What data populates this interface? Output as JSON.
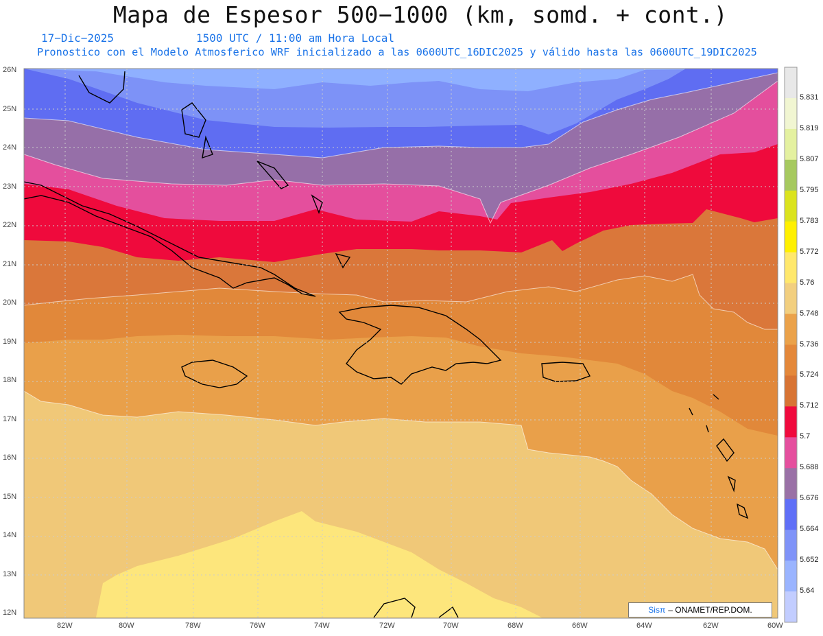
{
  "header": {
    "title": "Mapa de Espesor 500−1000 (km, somd. + cont.)",
    "date": "17−Dic−2025",
    "time": "1500 UTC / 11:00 am Hora Local",
    "forecast": "Pronostico con el Modelo Atmosferico WRF inicializado a las 0600UTC_16DIC2025 y válido hasta las  0600UTC_19DIC2025"
  },
  "map": {
    "lat_labels": [
      "26N",
      "25N",
      "24N",
      "23N",
      "22N",
      "21N",
      "20N",
      "19N",
      "18N",
      "17N",
      "16N",
      "15N",
      "14N",
      "13N",
      "12N"
    ],
    "lon_labels": [
      "82W",
      "80W",
      "78W",
      "76W",
      "74W",
      "72W",
      "70W",
      "68W",
      "66W",
      "64W",
      "62W",
      "60W"
    ],
    "bands": [
      {
        "level": "5.652",
        "color": "#8fb0ff"
      },
      {
        "level": "5.664",
        "color": "#7d92f7"
      },
      {
        "level": "5.676",
        "color": "#5f6df2"
      },
      {
        "level": "5.688",
        "color": "#966fa8"
      },
      {
        "level": "5.7",
        "color": "#e44f9d"
      },
      {
        "level": "5.712",
        "color": "#ef0a3c"
      },
      {
        "level": "5.724",
        "color": "#da773a"
      },
      {
        "level": "5.736",
        "color": "#e1883a"
      },
      {
        "level": "5.748",
        "color": "#e9a04a"
      },
      {
        "level": "5.76",
        "color": "#f0c878"
      },
      {
        "level": "5.772",
        "color": "#fde67c"
      }
    ]
  },
  "colorbar": {
    "colors": [
      "#e8e8e8",
      "#f1f6d2",
      "#e4f1a0",
      "#a6c95f",
      "#dbe31d",
      "#fff000",
      "#ffe86c",
      "#f2cf7f",
      "#eba24a",
      "#e4883a",
      "#d87434",
      "#f00a3d",
      "#e54f9e",
      "#9a71a6",
      "#5f6ff7",
      "#7f93f8",
      "#9ab4ff",
      "#c2cdff"
    ],
    "labels": [
      "5.831",
      "5.819",
      "5.807",
      "5.795",
      "5.783",
      "5.772",
      "5.76",
      "5.748",
      "5.736",
      "5.724",
      "5.712",
      "5.7",
      "5.688",
      "5.676",
      "5.664",
      "5.652",
      "5.64"
    ]
  },
  "credit": {
    "sis": "Sisπ",
    "rest": "– ONAMET/REP.DOM."
  }
}
